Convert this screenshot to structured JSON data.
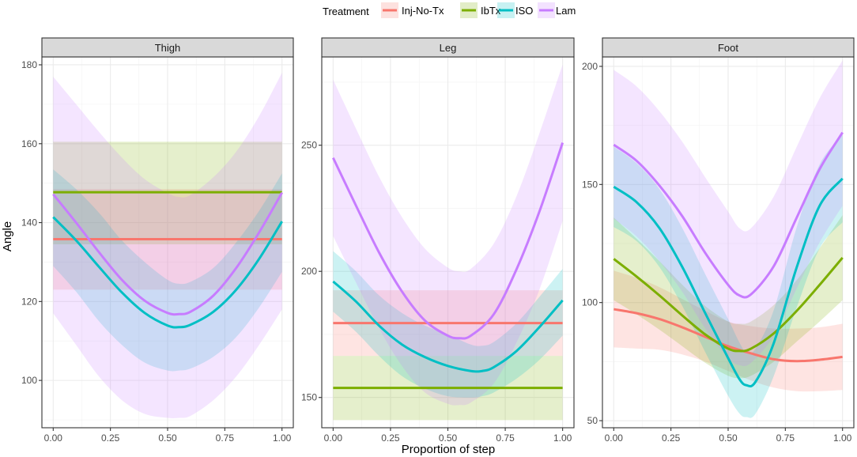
{
  "chart_data": {
    "type": "line",
    "legend": {
      "title": "Treatment",
      "placement": "top",
      "entries": [
        {
          "name": "Inj-No-Tx",
          "color": "#F8766D"
        },
        {
          "name": "IbTx",
          "color": "#7CAE00"
        },
        {
          "name": "ISO",
          "color": "#00BFC4"
        },
        {
          "name": "Lam",
          "color": "#C77CFF"
        }
      ]
    },
    "xlabel": "Proportion of step",
    "ylabel": "Angle",
    "xlim": [
      0,
      1
    ],
    "x_ticks": [
      0,
      0.25,
      0.5,
      0.75,
      1
    ],
    "x_tick_labels": [
      "0.00",
      "0.25",
      "0.50",
      "0.75",
      "1.00"
    ],
    "panels": [
      {
        "title": "Thigh",
        "ylim": [
          88,
          182
        ],
        "y_ticks": [
          100,
          120,
          140,
          160,
          180
        ],
        "y_tick_labels": [
          "100",
          "120",
          "140",
          "160",
          "180"
        ],
        "series": [
          {
            "name": "Inj-No-Tx",
            "x": [
              0,
              0.25,
              0.5,
              0.75,
              1
            ],
            "y": [
              135.8,
              135.8,
              135.8,
              135.8,
              135.8
            ],
            "lower": [
              123,
              123,
              123,
              123,
              123
            ],
            "upper": [
              148.5,
              148.5,
              148.5,
              148.5,
              148.5
            ]
          },
          {
            "name": "IbTx",
            "x": [
              0,
              0.25,
              0.5,
              0.75,
              1
            ],
            "y": [
              147.7,
              147.7,
              147.7,
              147.7,
              147.7
            ],
            "lower": [
              134.5,
              134.5,
              134.5,
              134.5,
              134.5
            ],
            "upper": [
              160.5,
              160.5,
              160.5,
              160.5,
              160.5
            ]
          },
          {
            "name": "ISO",
            "x": [
              0,
              0.1,
              0.2,
              0.3,
              0.4,
              0.5,
              0.55,
              0.6,
              0.7,
              0.8,
              0.9,
              1
            ],
            "y": [
              141.4,
              135.5,
              128.8,
              122.3,
              117.1,
              113.9,
              113.5,
              114.1,
              117.4,
              123.0,
              130.8,
              140.3
            ],
            "lower": [
              129,
              122.5,
              115,
              109,
              104.5,
              102.5,
              102.5,
              103,
              106,
              111,
              118.5,
              127.5
            ],
            "upper": [
              153.5,
              148.5,
              142.5,
              135.5,
              130,
              125.5,
              124.5,
              125,
              128.5,
              135,
              143,
              152.5
            ]
          },
          {
            "name": "Lam",
            "x": [
              0,
              0.1,
              0.2,
              0.3,
              0.4,
              0.5,
              0.55,
              0.6,
              0.7,
              0.8,
              0.9,
              1
            ],
            "y": [
              147.2,
              140.0,
              132.5,
              125.5,
              120.2,
              117.1,
              116.8,
              117.4,
              121.5,
              128.5,
              137.5,
              147.6
            ],
            "lower": [
              117,
              109,
              101,
              95,
              91.5,
              90.5,
              90.5,
              91,
              95,
              101,
              109,
              118
            ],
            "upper": [
              177,
              170,
              163,
              156.5,
              151,
              147.5,
              146.5,
              147,
              151.5,
              158,
              167,
              178
            ]
          }
        ]
      },
      {
        "title": "Leg",
        "ylim": [
          138,
          285
        ],
        "y_ticks": [
          150,
          200,
          250
        ],
        "y_tick_labels": [
          "150",
          "200",
          "250"
        ],
        "series": [
          {
            "name": "Inj-No-Tx",
            "x": [
              0,
              0.25,
              0.5,
              0.75,
              1
            ],
            "y": [
              179.5,
              179.5,
              179.5,
              179.5,
              179.5
            ],
            "lower": [
              166.5,
              166.5,
              166.5,
              166.5,
              166.5
            ],
            "upper": [
              192.5,
              192.5,
              192.5,
              192.5,
              192.5
            ]
          },
          {
            "name": "IbTx",
            "x": [
              0,
              0.25,
              0.5,
              0.75,
              1
            ],
            "y": [
              153.8,
              153.8,
              153.8,
              153.8,
              153.8
            ],
            "lower": [
              141,
              141,
              141,
              141,
              141
            ],
            "upper": [
              166.5,
              166.5,
              166.5,
              166.5,
              166.5
            ]
          },
          {
            "name": "ISO",
            "x": [
              0,
              0.1,
              0.2,
              0.3,
              0.4,
              0.5,
              0.6,
              0.65,
              0.7,
              0.8,
              0.9,
              1
            ],
            "y": [
              196.0,
              188.0,
              178.5,
              171.0,
              166.0,
              162.5,
              160.5,
              160.5,
              162.0,
              168.5,
              178.0,
              188.5
            ],
            "lower": [
              184,
              176,
              166.5,
              158.5,
              153.5,
              150.5,
              150,
              150.5,
              152,
              157.5,
              165,
              174.5
            ],
            "upper": [
              208,
              200,
              190.5,
              183.5,
              178.5,
              175,
              171,
              170.5,
              172,
              179.5,
              190,
              201
            ]
          },
          {
            "name": "Lam",
            "x": [
              0,
              0.1,
              0.2,
              0.3,
              0.4,
              0.5,
              0.55,
              0.6,
              0.7,
              0.8,
              0.9,
              1
            ],
            "y": [
              245.0,
              226.0,
              207.5,
              192.0,
              180.5,
              174.5,
              173.5,
              174.5,
              183.0,
              201.0,
              224.0,
              251.0
            ],
            "lower": [
              214,
              195.5,
              177.5,
              162.5,
              152,
              147.5,
              147,
              148,
              155.5,
              172,
              193,
              220
            ],
            "upper": [
              276,
              256.5,
              237.5,
              221.5,
              209,
              201.5,
              200,
              201,
              211,
              230,
              255,
              282
            ]
          }
        ]
      },
      {
        "title": "Foot",
        "ylim": [
          47,
          204
        ],
        "y_ticks": [
          50,
          100,
          150,
          200
        ],
        "y_tick_labels": [
          "50",
          "100",
          "150",
          "200"
        ],
        "series": [
          {
            "name": "Inj-No-Tx",
            "x": [
              0,
              0.1,
              0.2,
              0.3,
              0.4,
              0.5,
              0.6,
              0.7,
              0.8,
              0.9,
              1
            ],
            "y": [
              97.2,
              95.5,
              93.0,
              89.5,
              85.5,
              81.5,
              78.5,
              76.0,
              75.2,
              75.8,
              77.0
            ],
            "lower": [
              81,
              80.5,
              80,
              78,
              75,
              71,
              67,
              64,
              62.5,
              62.5,
              63
            ],
            "upper": [
              113.5,
              110.5,
              106.5,
              101.5,
              96.5,
              92,
              90,
              89,
              89,
              89.5,
              91
            ]
          },
          {
            "name": "IbTx",
            "x": [
              0,
              0.1,
              0.2,
              0.3,
              0.4,
              0.5,
              0.55,
              0.6,
              0.7,
              0.8,
              0.9,
              1
            ],
            "y": [
              118.5,
              111.0,
              103.0,
              94.5,
              86.5,
              80.5,
              79.5,
              80.5,
              87.0,
              96.5,
              107.5,
              119.0
            ],
            "lower": [
              101,
              95,
              88.5,
              81.5,
              74.5,
              69,
              68,
              69,
              75,
              83.5,
              92,
              101
            ],
            "upper": [
              136,
              127,
              117.5,
              107.5,
              98.5,
              92,
              91,
              92,
              99,
              109.5,
              123,
              137
            ]
          },
          {
            "name": "ISO",
            "x": [
              0,
              0.1,
              0.2,
              0.3,
              0.4,
              0.5,
              0.55,
              0.58,
              0.62,
              0.7,
              0.8,
              0.9,
              1
            ],
            "y": [
              149.0,
              142.5,
              131.5,
              115.0,
              95.5,
              76.5,
              67.5,
              65.0,
              66.5,
              83.0,
              115.0,
              141.0,
              152.5
            ],
            "lower": [
              132,
              126,
              115,
              98.5,
              79,
              60.5,
              53,
              51.5,
              53,
              69,
              98,
              123,
              134
            ],
            "upper": [
              166,
              159,
              148,
              131.5,
              112,
              93,
              83,
              79,
              80.5,
              97,
              132,
              158.5,
              171
            ]
          },
          {
            "name": "Lam",
            "x": [
              0,
              0.1,
              0.2,
              0.3,
              0.4,
              0.5,
              0.55,
              0.6,
              0.7,
              0.8,
              0.9,
              1
            ],
            "y": [
              166.8,
              160.0,
              149.5,
              136.5,
              121.0,
              107.5,
              103.0,
              103.5,
              115.5,
              136.0,
              156.5,
              172.0
            ],
            "lower": [
              135.5,
              128,
              117.5,
              104.5,
              89,
              76.5,
              73.5,
              74.5,
              86,
              106,
              125.5,
              141
            ],
            "upper": [
              198.5,
              191.5,
              181,
              168,
              153,
              138.5,
              131.5,
              131.5,
              145,
              166,
              186.5,
              202.5
            ]
          }
        ]
      }
    ]
  }
}
